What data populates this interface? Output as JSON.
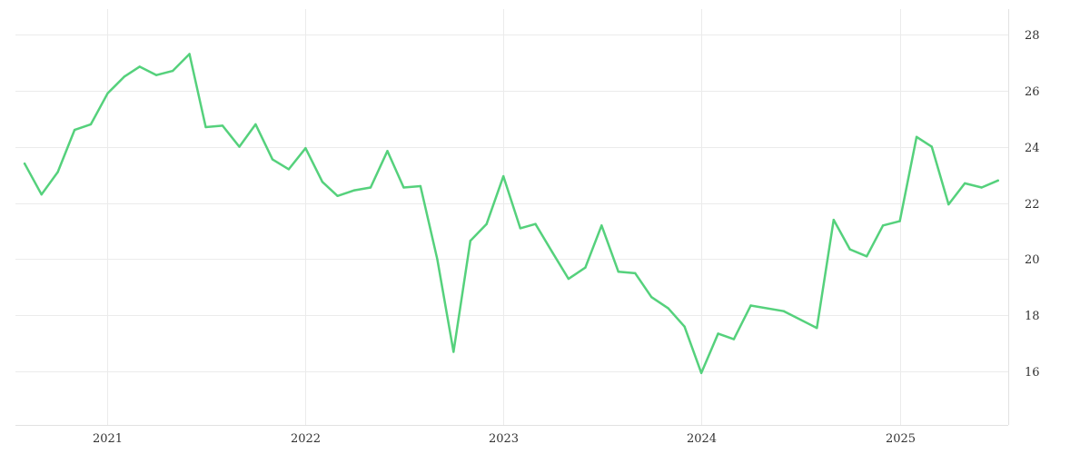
{
  "chart_data": {
    "type": "line",
    "title": "",
    "xlabel": "",
    "ylabel": "",
    "x_ticks": [
      "2021",
      "2022",
      "2023",
      "2024",
      "2025"
    ],
    "y_ticks": [
      "16",
      "18",
      "20",
      "22",
      "24",
      "26",
      "28"
    ],
    "xlim": [
      "2020-07-15",
      "2025-07-20"
    ],
    "ylim": [
      14.1,
      28.9
    ],
    "y_axis_side": "right",
    "grid": true,
    "legend": "none",
    "series": [
      {
        "color": "#55d17c",
        "x": [
          "2020-08-01",
          "2020-09-01",
          "2020-10-01",
          "2020-11-01",
          "2020-12-01",
          "2021-01-01",
          "2021-02-01",
          "2021-03-01",
          "2021-04-01",
          "2021-05-01",
          "2021-06-01",
          "2021-07-01",
          "2021-08-01",
          "2021-09-01",
          "2021-10-01",
          "2021-11-01",
          "2021-12-01",
          "2022-01-01",
          "2022-02-01",
          "2022-03-01",
          "2022-04-01",
          "2022-05-01",
          "2022-06-01",
          "2022-07-01",
          "2022-08-01",
          "2022-09-01",
          "2022-10-01",
          "2022-11-01",
          "2022-12-01",
          "2023-01-01",
          "2023-02-01",
          "2023-03-01",
          "2023-04-01",
          "2023-05-01",
          "2023-06-01",
          "2023-07-01",
          "2023-08-01",
          "2023-09-01",
          "2023-10-01",
          "2023-11-01",
          "2023-12-01",
          "2024-01-01",
          "2024-02-01",
          "2024-03-01",
          "2024-04-01",
          "2024-06-01",
          "2024-08-01",
          "2024-09-01",
          "2024-10-01",
          "2024-11-01",
          "2024-12-01",
          "2025-01-01",
          "2025-02-01",
          "2025-03-01",
          "2025-04-01",
          "2025-05-01",
          "2025-06-01",
          "2025-07-01"
        ],
        "y": [
          23.4,
          22.3,
          23.1,
          24.6,
          24.8,
          25.9,
          26.5,
          26.85,
          26.55,
          26.7,
          27.3,
          24.7,
          24.75,
          24.0,
          24.8,
          23.55,
          23.2,
          23.95,
          22.75,
          22.25,
          22.45,
          22.55,
          23.85,
          22.55,
          22.6,
          20.0,
          16.7,
          20.65,
          21.25,
          22.95,
          21.1,
          21.25,
          20.25,
          19.3,
          19.7,
          21.2,
          19.55,
          19.5,
          18.65,
          18.25,
          17.6,
          15.95,
          17.35,
          17.15,
          18.35,
          18.15,
          17.55,
          21.4,
          20.35,
          20.1,
          21.2,
          21.35,
          24.35,
          24.0,
          21.95,
          22.7,
          22.55,
          22.8
        ]
      }
    ]
  }
}
